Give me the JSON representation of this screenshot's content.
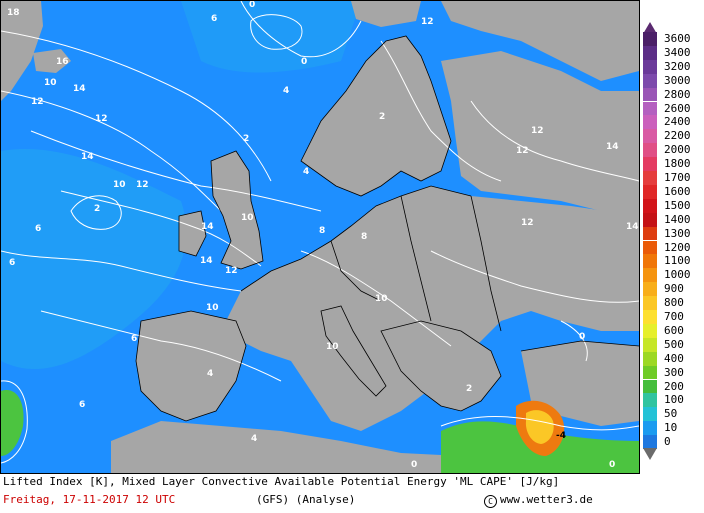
{
  "legend": {
    "items": [
      {
        "label": "3600",
        "color": "#4b1f67"
      },
      {
        "label": "3400",
        "color": "#5c2d86"
      },
      {
        "label": "3200",
        "color": "#6b3a9a"
      },
      {
        "label": "3000",
        "color": "#7d4aac"
      },
      {
        "label": "2800",
        "color": "#9a55b6"
      },
      {
        "label": "2600",
        "color": "#b45fc0"
      },
      {
        "label": "2400",
        "color": "#cb5fbc"
      },
      {
        "label": "2200",
        "color": "#d95aa4"
      },
      {
        "label": "2000",
        "color": "#e04f86"
      },
      {
        "label": "1800",
        "color": "#e43b62"
      },
      {
        "label": "1700",
        "color": "#e53d3d"
      },
      {
        "label": "1600",
        "color": "#e02727"
      },
      {
        "label": "1500",
        "color": "#d2141a"
      },
      {
        "label": "1400",
        "color": "#c41216"
      },
      {
        "label": "1300",
        "color": "#de3d10"
      },
      {
        "label": "1200",
        "color": "#ea5a08"
      },
      {
        "label": "1100",
        "color": "#f07608"
      },
      {
        "label": "1000",
        "color": "#f59410"
      },
      {
        "label": "900",
        "color": "#f8ae1a"
      },
      {
        "label": "800",
        "color": "#fbc726"
      },
      {
        "label": "700",
        "color": "#fde030"
      },
      {
        "label": "600",
        "color": "#e6ef2c"
      },
      {
        "label": "500",
        "color": "#c6e628"
      },
      {
        "label": "400",
        "color": "#9cd824"
      },
      {
        "label": "300",
        "color": "#6fcb27"
      },
      {
        "label": "200",
        "color": "#45be3c"
      },
      {
        "label": "100",
        "color": "#30c4a0"
      },
      {
        "label": "50",
        "color": "#24c2d6"
      },
      {
        "label": "10",
        "color": "#1b9bf0"
      },
      {
        "label": "0",
        "color": "#1e78e0"
      }
    ]
  },
  "map": {
    "colors": {
      "ocean": "#1e8fff",
      "ocean_light": "#21a6f2",
      "land": "#a6a6a6",
      "cape_green": "#4cc440",
      "cape_orange": "#ee7a10",
      "contour": "#ffffff"
    },
    "contour_labels": [
      "18",
      "12",
      "6",
      "0",
      "16",
      "14",
      "10",
      "8",
      "4",
      "2",
      "-4"
    ]
  },
  "footer": {
    "caption": "Lifted Index [K], Mixed Layer Convective Available Potential Energy 'ML CAPE' [J/kg]",
    "datetime": "Freitag, 17-11-2017  12 UTC",
    "model": "(GFS)  (Analyse)",
    "source": "www.wetter3.de",
    "copyright_symbol": "C"
  }
}
